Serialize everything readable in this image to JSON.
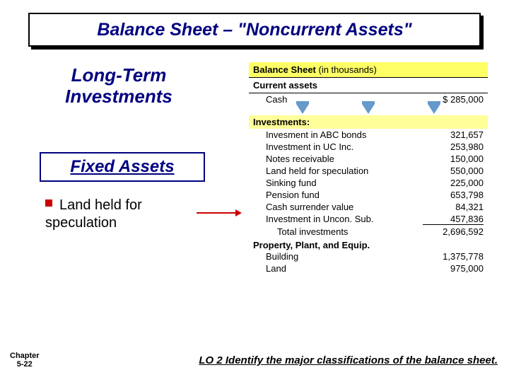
{
  "title": "Balance Sheet – \"Noncurrent Assets\"",
  "section_heading_line1": "Long-Term",
  "section_heading_line2": "Investments",
  "sub_box": "Fixed Assets",
  "bullet_text": "Land held for speculation",
  "sheet": {
    "header_bold": "Balance Sheet",
    "header_suffix": " (in thousands)",
    "current_assets": "Current assets",
    "cash_label": "Cash",
    "cash_value": "$   285,000",
    "investments_header": "Investments:",
    "rows": [
      {
        "label": "Invesment in ABC bonds",
        "value": "321,657"
      },
      {
        "label": "Investment in UC Inc.",
        "value": "253,980"
      },
      {
        "label": "Notes receivable",
        "value": "150,000"
      },
      {
        "label": "Land held for speculation",
        "value": "550,000"
      },
      {
        "label": "Sinking fund",
        "value": "225,000"
      },
      {
        "label": "Pension fund",
        "value": "653,798"
      },
      {
        "label": "Cash surrender value",
        "value": "84,321"
      },
      {
        "label": "Investment in Uncon. Sub.",
        "value": "457,836"
      }
    ],
    "total_label": "Total investments",
    "total_value": "2,696,592",
    "ppe_header": "Property, Plant, and Equip.",
    "ppe_rows": [
      {
        "label": "Building",
        "value": "1,375,778"
      },
      {
        "label": "Land",
        "value": "975,000"
      }
    ]
  },
  "chapter_line1": "Chapter",
  "chapter_line2": "5-22",
  "lo_text": "LO 2  Identify the major classifications of the balance sheet.",
  "colors": {
    "title_text": "#000080",
    "accent_red": "#cc0000",
    "highlight_yellow": "#ffff66",
    "triangle": "#6699cc"
  }
}
